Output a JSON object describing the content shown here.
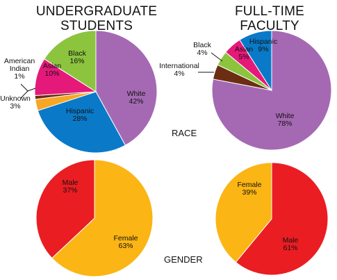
{
  "headings": {
    "left_title": "UNDERGRADUATE\nSTUDENTS",
    "right_title": "FULL-TIME\nFACULTY",
    "race_label": "RACE",
    "gender_label": "GENDER"
  },
  "chart_data": [
    {
      "type": "pie",
      "group": "UNDERGRADUATE STUDENTS",
      "facet": "RACE",
      "slices": [
        {
          "label": "White",
          "value": 42,
          "color": "#A569B3"
        },
        {
          "label": "Hispanic",
          "value": 28,
          "color": "#0A7AC8"
        },
        {
          "label": "Unknown",
          "value": 3,
          "color": "#F7A625"
        },
        {
          "label": "American Indian",
          "value": 1,
          "color": "#6B2E12"
        },
        {
          "label": "Asian",
          "value": 10,
          "color": "#E5197A"
        },
        {
          "label": "Black",
          "value": 16,
          "color": "#8CC43E"
        }
      ]
    },
    {
      "type": "pie",
      "group": "FULL-TIME FACULTY",
      "facet": "RACE",
      "slices": [
        {
          "label": "White",
          "value": 78,
          "color": "#A569B3"
        },
        {
          "label": "International",
          "value": 4,
          "color": "#6B2E12"
        },
        {
          "label": "Black",
          "value": 4,
          "color": "#8CC43E"
        },
        {
          "label": "Asian",
          "value": 5,
          "color": "#E5197A"
        },
        {
          "label": "Hispanic",
          "value": 9,
          "color": "#0A7AC8"
        }
      ]
    },
    {
      "type": "pie",
      "group": "UNDERGRADUATE STUDENTS",
      "facet": "GENDER",
      "slices": [
        {
          "label": "Female",
          "value": 63,
          "color": "#FBB514"
        },
        {
          "label": "Male",
          "value": 37,
          "color": "#EA1D23"
        }
      ]
    },
    {
      "type": "pie",
      "group": "FULL-TIME FACULTY",
      "facet": "GENDER",
      "slices": [
        {
          "label": "Male",
          "value": 61,
          "color": "#EA1D23"
        },
        {
          "label": "Female",
          "value": 39,
          "color": "#FBB514"
        }
      ]
    }
  ]
}
